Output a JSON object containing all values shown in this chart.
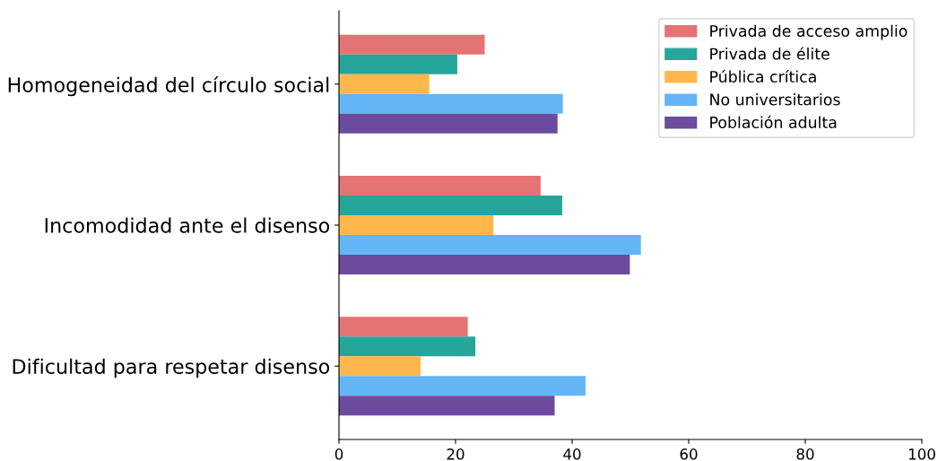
{
  "chart_data": {
    "type": "bar",
    "orientation": "horizontal",
    "categories": [
      "Homogeneidad del círculo social",
      "Incomodidad ante el disenso",
      "Dificultad para respetar disenso"
    ],
    "series": [
      {
        "name": "Privada de acceso amplio",
        "color": "#e57373",
        "values": [
          25.0,
          34.6,
          22.1
        ]
      },
      {
        "name": "Privada de élite",
        "color": "#26a69a",
        "values": [
          20.3,
          38.3,
          23.4
        ]
      },
      {
        "name": "Pública crítica",
        "color": "#ffb74d",
        "values": [
          15.5,
          26.5,
          14.0
        ]
      },
      {
        "name": "No universitarios",
        "color": "#64b5f6",
        "values": [
          38.4,
          51.8,
          42.3
        ]
      },
      {
        "name": "Población adulta",
        "color": "#6c4b9e",
        "values": [
          37.5,
          49.9,
          37.0
        ]
      }
    ],
    "xlim": [
      0,
      100
    ],
    "xticks": [
      0,
      20,
      40,
      60,
      80,
      100
    ],
    "grid": false,
    "legend": "top right"
  }
}
